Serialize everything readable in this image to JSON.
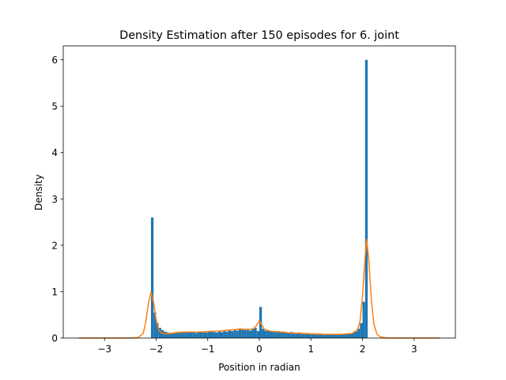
{
  "chart_data": {
    "type": "bar",
    "title": "Density Estimation after 150 episodes for 6. joint",
    "xlabel": "Position in radian",
    "ylabel": "Density",
    "xlim": [
      -3.8,
      3.8
    ],
    "ylim": [
      0,
      6.3
    ],
    "xticks": [
      -3,
      -2,
      -1,
      0,
      1,
      2,
      3
    ],
    "xtick_labels": [
      "−3",
      "−2",
      "−1",
      "0",
      "1",
      "2",
      "3"
    ],
    "yticks": [
      0,
      1,
      2,
      3,
      4,
      5,
      6
    ],
    "ytick_labels": [
      "0",
      "1",
      "2",
      "3",
      "4",
      "5",
      "6"
    ],
    "grid": false,
    "colors": {
      "histogram": "#1f77b4",
      "kde": "#ff7f0e"
    },
    "series": [
      {
        "type": "histogram",
        "bin_width": 0.05,
        "bins": [
          [
            -2.1,
            2.6
          ],
          [
            -2.05,
            0.55
          ],
          [
            -2.0,
            0.32
          ],
          [
            -1.95,
            0.22
          ],
          [
            -1.9,
            0.17
          ],
          [
            -1.85,
            0.14
          ],
          [
            -1.8,
            0.12
          ],
          [
            -1.75,
            0.11
          ],
          [
            -1.7,
            0.1
          ],
          [
            -1.65,
            0.11
          ],
          [
            -1.6,
            0.12
          ],
          [
            -1.55,
            0.12
          ],
          [
            -1.5,
            0.13
          ],
          [
            -1.45,
            0.12
          ],
          [
            -1.4,
            0.13
          ],
          [
            -1.35,
            0.12
          ],
          [
            -1.3,
            0.13
          ],
          [
            -1.25,
            0.11
          ],
          [
            -1.2,
            0.12
          ],
          [
            -1.15,
            0.13
          ],
          [
            -1.1,
            0.12
          ],
          [
            -1.05,
            0.12
          ],
          [
            -1.0,
            0.13
          ],
          [
            -0.95,
            0.14
          ],
          [
            -0.9,
            0.13
          ],
          [
            -0.85,
            0.12
          ],
          [
            -0.8,
            0.14
          ],
          [
            -0.75,
            0.13
          ],
          [
            -0.7,
            0.15
          ],
          [
            -0.65,
            0.14
          ],
          [
            -0.6,
            0.16
          ],
          [
            -0.55,
            0.15
          ],
          [
            -0.5,
            0.17
          ],
          [
            -0.45,
            0.16
          ],
          [
            -0.4,
            0.21
          ],
          [
            -0.35,
            0.18
          ],
          [
            -0.3,
            0.17
          ],
          [
            -0.25,
            0.2
          ],
          [
            -0.2,
            0.16
          ],
          [
            -0.15,
            0.19
          ],
          [
            -0.1,
            0.22
          ],
          [
            -0.05,
            0.15
          ],
          [
            0.0,
            0.67
          ],
          [
            0.05,
            0.2
          ],
          [
            0.1,
            0.16
          ],
          [
            0.15,
            0.17
          ],
          [
            0.2,
            0.14
          ],
          [
            0.25,
            0.15
          ],
          [
            0.3,
            0.14
          ],
          [
            0.35,
            0.15
          ],
          [
            0.4,
            0.13
          ],
          [
            0.45,
            0.14
          ],
          [
            0.5,
            0.13
          ],
          [
            0.55,
            0.12
          ],
          [
            0.6,
            0.13
          ],
          [
            0.65,
            0.12
          ],
          [
            0.7,
            0.11
          ],
          [
            0.75,
            0.12
          ],
          [
            0.8,
            0.11
          ],
          [
            0.85,
            0.1
          ],
          [
            0.9,
            0.11
          ],
          [
            0.95,
            0.1
          ],
          [
            1.0,
            0.09
          ],
          [
            1.05,
            0.1
          ],
          [
            1.1,
            0.09
          ],
          [
            1.15,
            0.1
          ],
          [
            1.2,
            0.09
          ],
          [
            1.25,
            0.08
          ],
          [
            1.3,
            0.09
          ],
          [
            1.35,
            0.08
          ],
          [
            1.4,
            0.09
          ],
          [
            1.45,
            0.08
          ],
          [
            1.5,
            0.08
          ],
          [
            1.55,
            0.09
          ],
          [
            1.6,
            0.08
          ],
          [
            1.65,
            0.09
          ],
          [
            1.7,
            0.1
          ],
          [
            1.75,
            0.11
          ],
          [
            1.8,
            0.12
          ],
          [
            1.85,
            0.14
          ],
          [
            1.9,
            0.2
          ],
          [
            1.95,
            0.32
          ],
          [
            2.0,
            0.78
          ],
          [
            2.05,
            6.0
          ]
        ]
      },
      {
        "type": "line",
        "points": [
          [
            -3.5,
            0.0
          ],
          [
            -3.0,
            0.0
          ],
          [
            -2.5,
            0.0
          ],
          [
            -2.35,
            0.01
          ],
          [
            -2.25,
            0.1
          ],
          [
            -2.2,
            0.35
          ],
          [
            -2.15,
            0.75
          ],
          [
            -2.1,
            0.99
          ],
          [
            -2.05,
            0.78
          ],
          [
            -2.0,
            0.4
          ],
          [
            -1.95,
            0.18
          ],
          [
            -1.9,
            0.11
          ],
          [
            -1.8,
            0.09
          ],
          [
            -1.6,
            0.12
          ],
          [
            -1.4,
            0.13
          ],
          [
            -1.2,
            0.13
          ],
          [
            -1.0,
            0.14
          ],
          [
            -0.8,
            0.15
          ],
          [
            -0.6,
            0.17
          ],
          [
            -0.4,
            0.19
          ],
          [
            -0.3,
            0.19
          ],
          [
            -0.2,
            0.18
          ],
          [
            -0.1,
            0.21
          ],
          [
            -0.05,
            0.28
          ],
          [
            0.0,
            0.37
          ],
          [
            0.05,
            0.28
          ],
          [
            0.1,
            0.19
          ],
          [
            0.2,
            0.15
          ],
          [
            0.4,
            0.13
          ],
          [
            0.6,
            0.11
          ],
          [
            0.8,
            0.1
          ],
          [
            1.0,
            0.09
          ],
          [
            1.2,
            0.08
          ],
          [
            1.4,
            0.08
          ],
          [
            1.6,
            0.08
          ],
          [
            1.8,
            0.1
          ],
          [
            1.9,
            0.18
          ],
          [
            1.95,
            0.35
          ],
          [
            2.0,
            0.9
          ],
          [
            2.05,
            1.75
          ],
          [
            2.08,
            2.13
          ],
          [
            2.12,
            1.7
          ],
          [
            2.17,
            0.85
          ],
          [
            2.22,
            0.3
          ],
          [
            2.28,
            0.08
          ],
          [
            2.35,
            0.02
          ],
          [
            2.5,
            0.0
          ],
          [
            3.0,
            0.0
          ],
          [
            3.5,
            0.0
          ]
        ]
      }
    ]
  }
}
